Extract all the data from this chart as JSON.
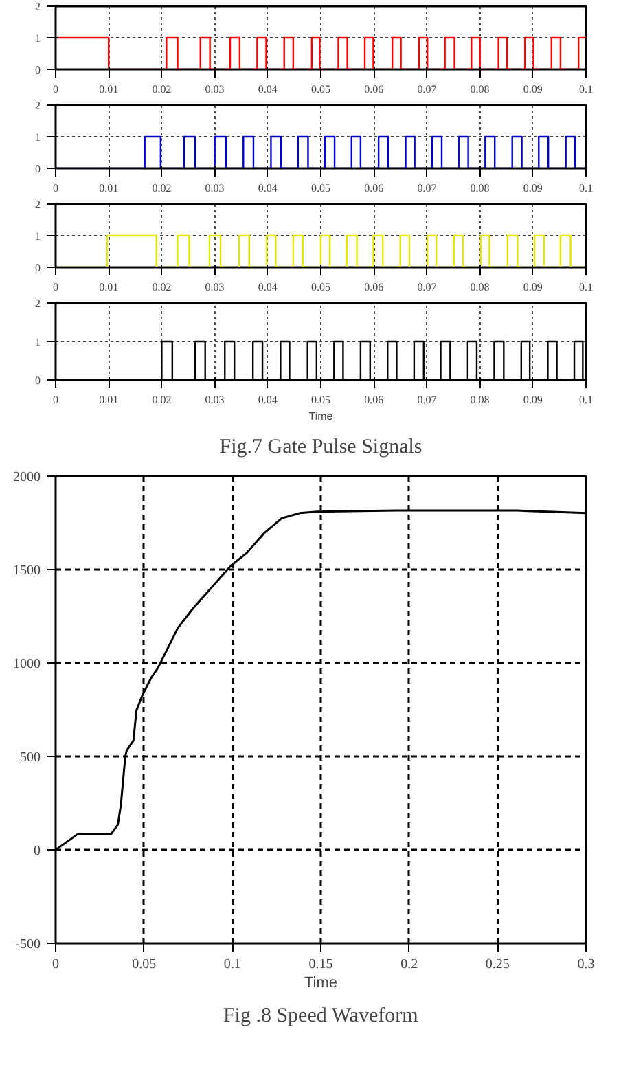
{
  "chart_data": [
    {
      "type": "step",
      "xlim": [
        0,
        0.1
      ],
      "ylim": [
        0,
        2
      ],
      "xticks": [
        0,
        0.01,
        0.02,
        0.03,
        0.04,
        0.05,
        0.06,
        0.07,
        0.08,
        0.09,
        0.1
      ],
      "yticks": [
        0,
        1,
        2
      ],
      "grid": true,
      "series": [
        {
          "color": "#ff0000",
          "x": [
            0,
            0.01,
            0.0209,
            0.023,
            0.0273,
            0.0291,
            0.0329,
            0.0347,
            0.038,
            0.0397,
            0.0431,
            0.0448,
            0.0483,
            0.0498,
            0.0533,
            0.055,
            0.0583,
            0.0599,
            0.0635,
            0.0651,
            0.0685,
            0.0701,
            0.0734,
            0.0752,
            0.0784,
            0.08,
            0.0835,
            0.0851,
            0.0885,
            0.0901,
            0.0935,
            0.0952,
            0.0986,
            0.1
          ],
          "values": [
            1,
            0,
            1,
            0,
            1,
            0,
            1,
            0,
            1,
            0,
            1,
            0,
            1,
            0,
            1,
            0,
            1,
            0,
            1,
            0,
            1,
            0,
            1,
            0,
            1,
            0,
            1,
            0,
            1,
            0,
            1,
            0,
            1,
            1
          ]
        }
      ]
    },
    {
      "type": "step",
      "xlim": [
        0,
        0.1
      ],
      "ylim": [
        0,
        2
      ],
      "xticks": [
        0,
        0.01,
        0.02,
        0.03,
        0.04,
        0.05,
        0.06,
        0.07,
        0.08,
        0.09,
        0.1
      ],
      "yticks": [
        0,
        1,
        2
      ],
      "grid": true,
      "series": [
        {
          "color": "#0000cc",
          "x": [
            0,
            0.0168,
            0.0198,
            0.0242,
            0.0263,
            0.03,
            0.0321,
            0.0354,
            0.0373,
            0.0406,
            0.0425,
            0.0457,
            0.0476,
            0.0508,
            0.0526,
            0.0558,
            0.0575,
            0.0609,
            0.0627,
            0.066,
            0.0677,
            0.071,
            0.0728,
            0.076,
            0.0778,
            0.081,
            0.0828,
            0.0861,
            0.0879,
            0.0911,
            0.0929,
            0.0962,
            0.0979,
            0.1
          ],
          "values": [
            0,
            1,
            0,
            1,
            0,
            1,
            0,
            1,
            0,
            1,
            0,
            1,
            0,
            1,
            0,
            1,
            0,
            1,
            0,
            1,
            0,
            1,
            0,
            1,
            0,
            1,
            0,
            1,
            0,
            1,
            0,
            1,
            0,
            0
          ]
        }
      ]
    },
    {
      "type": "step",
      "xlim": [
        0,
        0.1
      ],
      "ylim": [
        0,
        2
      ],
      "xticks": [
        0,
        0.01,
        0.02,
        0.03,
        0.04,
        0.05,
        0.06,
        0.07,
        0.08,
        0.09,
        0.1
      ],
      "yticks": [
        0,
        1,
        2
      ],
      "grid": true,
      "series": [
        {
          "color": "#e6e600",
          "x": [
            0,
            0.0097,
            0.019,
            0.023,
            0.0252,
            0.029,
            0.0311,
            0.0346,
            0.0365,
            0.0398,
            0.0415,
            0.0448,
            0.0466,
            0.05,
            0.0517,
            0.0549,
            0.0568,
            0.0599,
            0.0617,
            0.065,
            0.0667,
            0.0701,
            0.0718,
            0.0751,
            0.0768,
            0.0802,
            0.0818,
            0.0852,
            0.0871,
            0.0903,
            0.0921,
            0.0952,
            0.0971,
            0.1
          ],
          "values": [
            0,
            1,
            0,
            1,
            0,
            1,
            0,
            1,
            0,
            1,
            0,
            1,
            0,
            1,
            0,
            1,
            0,
            1,
            0,
            1,
            0,
            1,
            0,
            1,
            0,
            1,
            0,
            1,
            0,
            1,
            0,
            1,
            0,
            0
          ]
        }
      ]
    },
    {
      "type": "step",
      "xlabel": "Time",
      "annotations": [
        "Fig.7 Gate Pulse Signals"
      ],
      "xlim": [
        0,
        0.1
      ],
      "ylim": [
        0,
        2
      ],
      "xticks": [
        0,
        0.01,
        0.02,
        0.03,
        0.04,
        0.05,
        0.06,
        0.07,
        0.08,
        0.09,
        0.1
      ],
      "yticks": [
        0,
        1,
        2
      ],
      "grid": true,
      "series": [
        {
          "color": "#000000",
          "x": [
            0,
            0.02,
            0.022,
            0.0263,
            0.0282,
            0.0319,
            0.0337,
            0.0372,
            0.039,
            0.0424,
            0.0441,
            0.0475,
            0.0492,
            0.0525,
            0.0542,
            0.0575,
            0.0593,
            0.0626,
            0.0643,
            0.0676,
            0.0694,
            0.0726,
            0.0744,
            0.0777,
            0.0794,
            0.0827,
            0.0845,
            0.0878,
            0.0894,
            0.0928,
            0.0945,
            0.0978,
            0.0994,
            0.1
          ],
          "values": [
            0,
            1,
            0,
            1,
            0,
            1,
            0,
            1,
            0,
            1,
            0,
            1,
            0,
            1,
            0,
            1,
            0,
            1,
            0,
            1,
            0,
            1,
            0,
            1,
            0,
            1,
            0,
            1,
            0,
            1,
            0,
            1,
            0,
            0
          ]
        }
      ]
    },
    {
      "type": "line",
      "xlabel": "Time",
      "annotations": [
        "Fig .8 Speed Waveform"
      ],
      "xlim": [
        0,
        0.3
      ],
      "ylim": [
        -500,
        2000
      ],
      "xticks": [
        0,
        0.05,
        0.1,
        0.15,
        0.2,
        0.25,
        0.3
      ],
      "yticks": [
        -500,
        0,
        500,
        1000,
        1500,
        2000
      ],
      "grid": true,
      "series": [
        {
          "color": "#000000",
          "x": [
            0,
            0.0126,
            0.0314,
            0.0352,
            0.0369,
            0.0394,
            0.0402,
            0.044,
            0.0457,
            0.049,
            0.054,
            0.0578,
            0.0628,
            0.0691,
            0.0779,
            0.0879,
            0.0992,
            0.108,
            0.118,
            0.128,
            0.138,
            0.148,
            0.193,
            0.261,
            0.3
          ],
          "values": [
            0,
            85,
            85,
            135,
            240,
            500,
            532,
            585,
            746,
            826,
            920,
            973,
            1067,
            1187,
            1294,
            1401,
            1521,
            1588,
            1695,
            1775,
            1802,
            1810,
            1816,
            1816,
            1802
          ]
        }
      ]
    }
  ]
}
